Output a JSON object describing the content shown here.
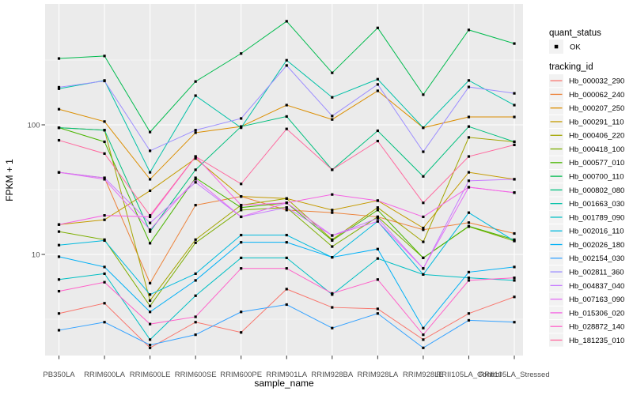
{
  "chart_data": {
    "type": "line",
    "title": "",
    "xlabel": "sample_name",
    "ylabel": "FPKM + 1",
    "y_scale": "log10",
    "panel_bg": "#EBEBEB",
    "grid_color": "#FFFFFF",
    "point_shape": "square",
    "point_color": "#000000",
    "axis_text_color": "#4D4D4D",
    "y_ticks": [
      {
        "value": 100,
        "label": "100"
      },
      {
        "value": 10,
        "label": "10"
      }
    ],
    "y_minor_ticks": [
      316.23,
      31.62,
      3.162
    ],
    "categories": [
      "PB350LA",
      "RRIM600LA",
      "RRIM600LE",
      "RRIM600SE",
      "RRIM600PE",
      "RRIM901LA",
      "RRIM928BA",
      "RRIM928LA",
      "RRIM928LE",
      "RRII105LA_Control",
      "RRII105LA_Stressed"
    ],
    "legend": {
      "quant_status_title": "quant_status",
      "quant_status_items": [
        {
          "label": "OK",
          "shape": "point",
          "color": "#000000"
        }
      ],
      "tracking_title": "tracking_id"
    },
    "series": [
      {
        "name": "Hb_000032_290",
        "color": "#F8766D",
        "values": [
          3.5,
          4.2,
          1.9,
          3.0,
          2.5,
          5.4,
          3.9,
          3.8,
          2.2,
          3.5,
          4.7
        ]
      },
      {
        "name": "Hb_000062_240",
        "color": "#EC8239",
        "values": [
          43,
          39,
          6.0,
          24,
          28,
          22,
          21,
          19.5,
          15.5,
          17.6,
          14.5
        ]
      },
      {
        "name": "Hb_000207_250",
        "color": "#DB8E00",
        "values": [
          132,
          106,
          38,
          87,
          97,
          142,
          110,
          183,
          95,
          115,
          115
        ]
      },
      {
        "name": "Hb_000291_110",
        "color": "#C49A00",
        "values": [
          17,
          18.5,
          31,
          55,
          28,
          27,
          22,
          26,
          16,
          43,
          38
        ]
      },
      {
        "name": "Hb_000406_220",
        "color": "#A3A500",
        "values": [
          95,
          91,
          4.4,
          13,
          24,
          27,
          13,
          23,
          12.5,
          80,
          74
        ]
      },
      {
        "name": "Hb_000418_100",
        "color": "#7CAE00",
        "values": [
          15,
          13,
          4.0,
          12.3,
          22,
          23,
          11.5,
          19.5,
          9.4,
          16.4,
          12.7
        ]
      },
      {
        "name": "Hb_000577_010",
        "color": "#49B500",
        "values": [
          95,
          74,
          12.2,
          39,
          23,
          25,
          12.8,
          22,
          9.4,
          16.5,
          13
        ]
      },
      {
        "name": "Hb_000700_110",
        "color": "#00BB4E",
        "values": [
          325,
          340,
          88,
          216,
          355,
          630,
          252,
          560,
          171,
          540,
          424
        ]
      },
      {
        "name": "Hb_000802_080",
        "color": "#00BF7D",
        "values": [
          95,
          91,
          15,
          45,
          97,
          116,
          45,
          90,
          40,
          97,
          74
        ]
      },
      {
        "name": "Hb_001663_030",
        "color": "#00C1A7",
        "values": [
          190,
          220,
          43,
          168,
          95,
          315,
          163,
          225,
          95,
          220,
          142
        ]
      },
      {
        "name": "Hb_001789_090",
        "color": "#00BFC4",
        "values": [
          6.4,
          7.1,
          2.2,
          4.8,
          9.4,
          9.4,
          4.9,
          9.3,
          7.0,
          6.6,
          6.3
        ]
      },
      {
        "name": "Hb_002016_110",
        "color": "#00BADE",
        "values": [
          11.8,
          12.8,
          4.9,
          7.1,
          14.1,
          14.1,
          9.5,
          18,
          7.0,
          21,
          12.7
        ]
      },
      {
        "name": "Hb_002026_180",
        "color": "#00B0F6",
        "values": [
          9.6,
          8.0,
          3.6,
          6.3,
          12.4,
          12.4,
          9.5,
          11,
          2.7,
          7.3,
          8.0
        ]
      },
      {
        "name": "Hb_002154_030",
        "color": "#35A2FF",
        "values": [
          2.6,
          3.0,
          2.0,
          2.4,
          3.6,
          4.1,
          2.7,
          3.5,
          1.9,
          3.1,
          3.0
        ]
      },
      {
        "name": "Hb_002811_360",
        "color": "#9C8DFF",
        "values": [
          195,
          218,
          63,
          91,
          112,
          287,
          117,
          205,
          62,
          196,
          175
        ]
      },
      {
        "name": "Hb_004837_040",
        "color": "#C77CFF",
        "values": [
          43,
          39,
          17.5,
          36,
          19.5,
          23,
          14,
          19,
          7.8,
          37,
          38
        ]
      },
      {
        "name": "Hb_007163_090",
        "color": "#E36EF6",
        "values": [
          43,
          38,
          15.5,
          38,
          19.5,
          25,
          14,
          18,
          7.8,
          33,
          30
        ]
      },
      {
        "name": "Hb_015306_020",
        "color": "#F563E3",
        "values": [
          17,
          20,
          19.5,
          57,
          24,
          25,
          29,
          26,
          19.5,
          33,
          30
        ]
      },
      {
        "name": "Hb_028872_140",
        "color": "#FF61C9",
        "values": [
          5.2,
          6.1,
          2.9,
          3.3,
          7.8,
          7.8,
          5.0,
          6.4,
          2.4,
          6.3,
          6.6
        ]
      },
      {
        "name": "Hb_181235_010",
        "color": "#FF689E",
        "values": [
          76,
          60,
          20,
          57,
          35,
          93,
          45,
          75,
          25,
          57,
          70
        ]
      }
    ]
  }
}
